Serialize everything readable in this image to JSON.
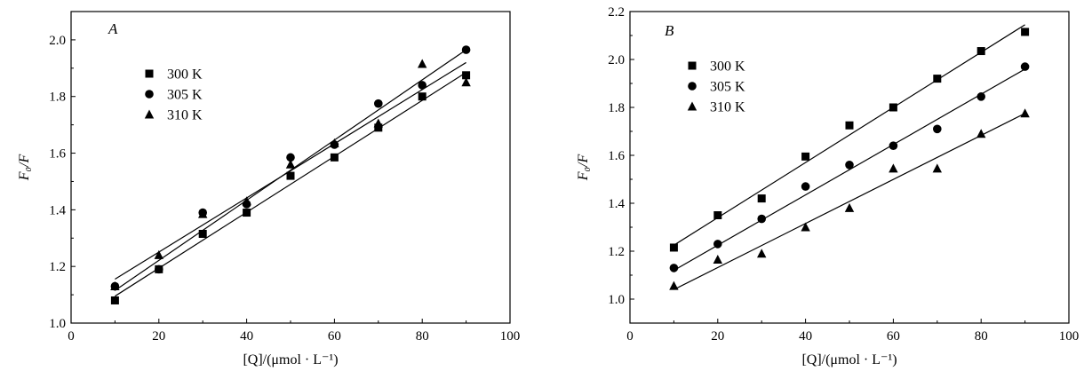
{
  "chart_data": [
    {
      "type": "scatter",
      "panel_label": "A",
      "xlabel": "[Q]/(μmol · L⁻¹)",
      "ylabel": "F₀/F",
      "xlim": [
        0,
        100
      ],
      "ylim": [
        1.0,
        2.1
      ],
      "xticks": [
        0,
        20,
        40,
        60,
        80,
        100
      ],
      "yticks": [
        1.0,
        1.2,
        1.4,
        1.6,
        1.8,
        2.0
      ],
      "xtick_labels": [
        "0",
        "20",
        "40",
        "60",
        "80",
        "100"
      ],
      "ytick_labels": [
        "1.0",
        "1.2",
        "1.4",
        "1.6",
        "1.8",
        "2.0"
      ],
      "legend_position": "top-left",
      "grid": false,
      "series": [
        {
          "name": "300 K",
          "marker": "square",
          "x": [
            10,
            20,
            30,
            40,
            50,
            60,
            70,
            80,
            90
          ],
          "y": [
            1.08,
            1.19,
            1.315,
            1.39,
            1.52,
            1.585,
            1.69,
            1.8,
            1.875
          ],
          "fit": [
            [
              10,
              1.095
            ],
            [
              90,
              1.885
            ]
          ]
        },
        {
          "name": "305 K",
          "marker": "circle",
          "x": [
            10,
            20,
            30,
            40,
            50,
            60,
            70,
            80,
            90
          ],
          "y": [
            1.13,
            1.19,
            1.39,
            1.42,
            1.585,
            1.63,
            1.775,
            1.84,
            1.965
          ],
          "fit": [
            [
              10,
              1.115
            ],
            [
              90,
              1.965
            ]
          ]
        },
        {
          "name": "310 K",
          "marker": "triangle",
          "x": [
            10,
            20,
            30,
            40,
            50,
            60,
            70,
            80,
            90
          ],
          "y": [
            1.13,
            1.24,
            1.385,
            1.43,
            1.56,
            1.635,
            1.705,
            1.915,
            1.85
          ],
          "fit": [
            [
              10,
              1.155
            ],
            [
              90,
              1.92
            ]
          ]
        }
      ]
    },
    {
      "type": "scatter",
      "panel_label": "B",
      "xlabel": "[Q]/(μmol · L⁻¹)",
      "ylabel": "F₀/F",
      "xlim": [
        0,
        100
      ],
      "ylim": [
        0.9,
        2.2
      ],
      "xticks": [
        0,
        20,
        40,
        60,
        80,
        100
      ],
      "yticks": [
        1.0,
        1.2,
        1.4,
        1.6,
        1.8,
        2.0,
        2.2
      ],
      "xtick_labels": [
        "0",
        "20",
        "40",
        "60",
        "80",
        "100"
      ],
      "ytick_labels": [
        "1.0",
        "1.2",
        "1.4",
        "1.6",
        "1.8",
        "2.0",
        "2.2"
      ],
      "legend_position": "top-left",
      "grid": false,
      "series": [
        {
          "name": "300 K",
          "marker": "square",
          "x": [
            10,
            20,
            30,
            40,
            50,
            60,
            70,
            80,
            90
          ],
          "y": [
            1.215,
            1.35,
            1.42,
            1.595,
            1.725,
            1.8,
            1.92,
            2.035,
            2.115
          ],
          "fit": [
            [
              10,
              1.225
            ],
            [
              90,
              2.145
            ]
          ]
        },
        {
          "name": "305 K",
          "marker": "circle",
          "x": [
            10,
            20,
            30,
            40,
            50,
            60,
            70,
            80,
            90
          ],
          "y": [
            1.13,
            1.23,
            1.335,
            1.47,
            1.56,
            1.64,
            1.71,
            1.845,
            1.97
          ],
          "fit": [
            [
              10,
              1.12
            ],
            [
              90,
              1.96
            ]
          ]
        },
        {
          "name": "310 K",
          "marker": "triangle",
          "x": [
            10,
            20,
            30,
            40,
            50,
            60,
            70,
            80,
            90
          ],
          "y": [
            1.055,
            1.165,
            1.19,
            1.3,
            1.38,
            1.545,
            1.545,
            1.69,
            1.775
          ],
          "fit": [
            [
              10,
              1.04
            ],
            [
              90,
              1.775
            ]
          ]
        }
      ]
    }
  ]
}
